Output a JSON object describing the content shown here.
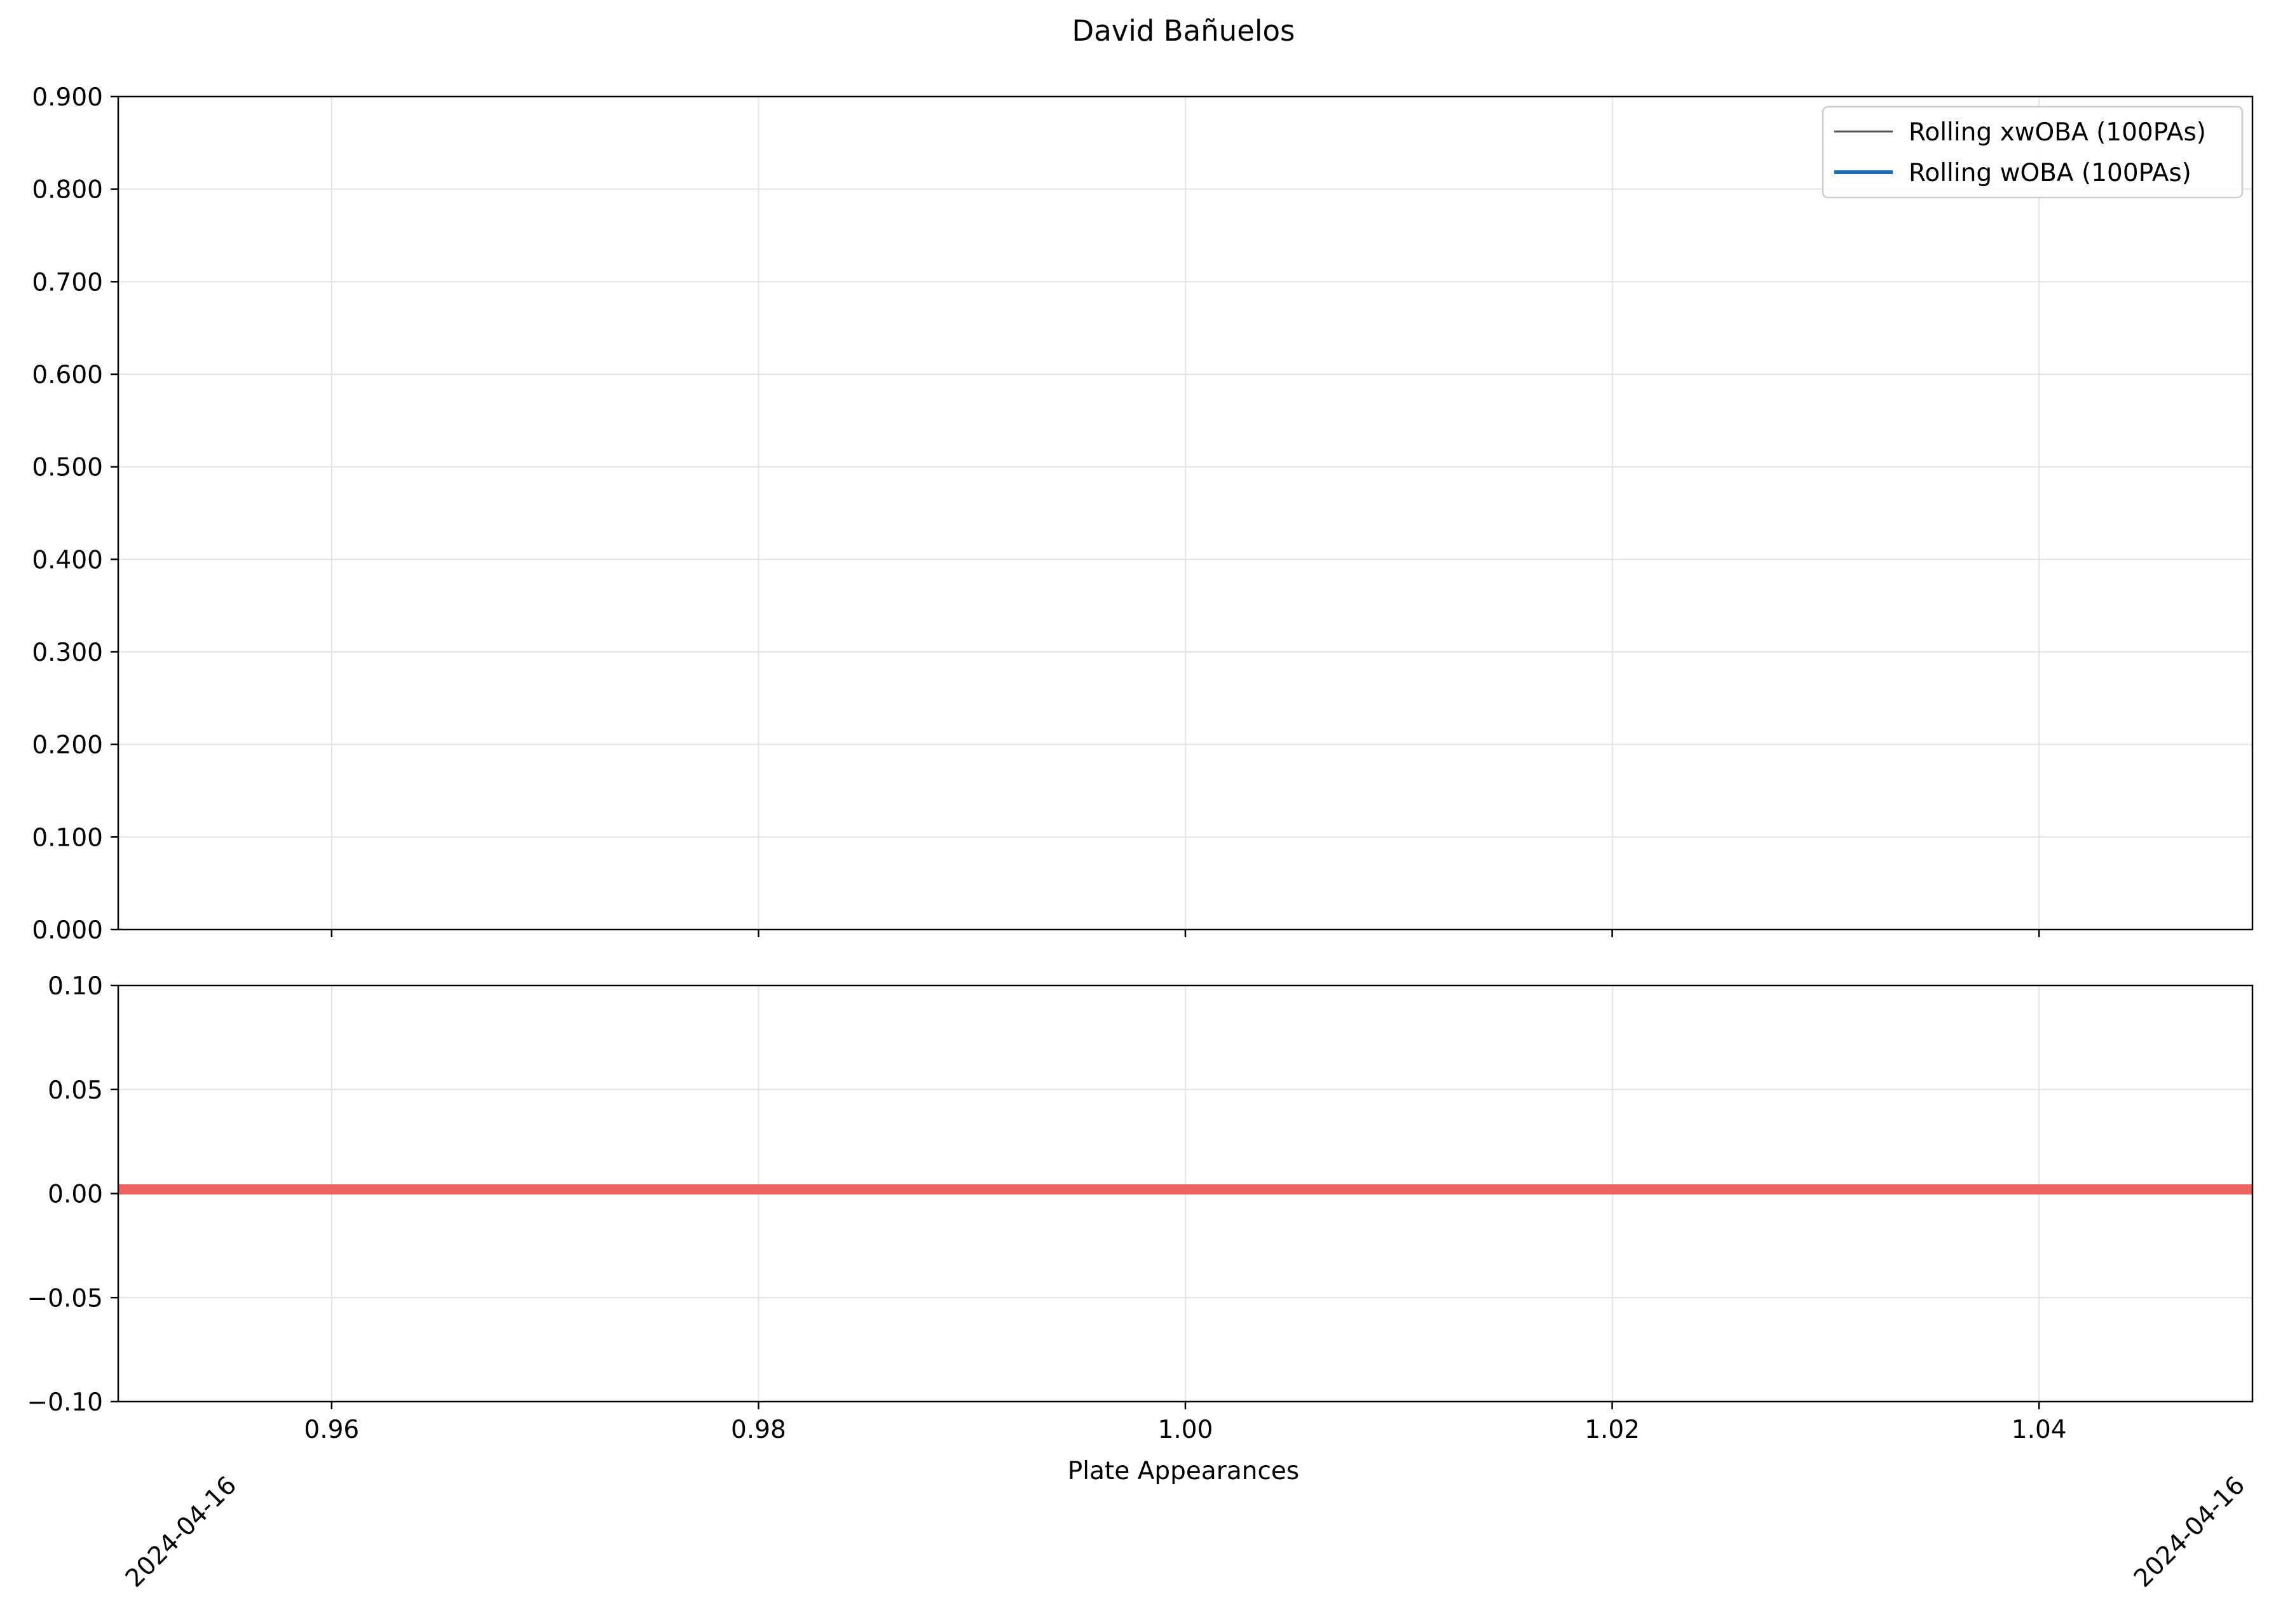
{
  "chart_data": [
    {
      "type": "line",
      "title": "David Bañuelos",
      "xlabel": "",
      "ylabel": "",
      "xlim": [
        0.95,
        1.05
      ],
      "ylim": [
        0.0,
        0.9
      ],
      "yticks": [
        0.0,
        0.1,
        0.2,
        0.3,
        0.4,
        0.5,
        0.6,
        0.7,
        0.8,
        0.9
      ],
      "ytick_labels": [
        "0.000",
        "0.100",
        "0.200",
        "0.300",
        "0.400",
        "0.500",
        "0.600",
        "0.700",
        "0.800",
        "0.900"
      ],
      "grid": true,
      "legend_position": "top-right",
      "series": [
        {
          "name": "Rolling xwOBA (100PAs)",
          "color": "#555555",
          "values": []
        },
        {
          "name": "Rolling wOBA (100PAs)",
          "color": "#1f6eb4",
          "values": []
        }
      ]
    },
    {
      "type": "line",
      "title": "",
      "xlabel": "Plate Appearances",
      "ylabel": "",
      "xlim": [
        0.95,
        1.05
      ],
      "ylim": [
        -0.1,
        0.1
      ],
      "xticks": [
        0.96,
        0.98,
        1.0,
        1.02,
        1.04
      ],
      "xtick_labels": [
        "0.96",
        "0.98",
        "1.00",
        "1.02",
        "1.04"
      ],
      "yticks": [
        -0.1,
        -0.05,
        0.0,
        0.05,
        0.1
      ],
      "ytick_labels": [
        "−0.10",
        "−0.05",
        "0.00",
        "0.05",
        "0.10"
      ],
      "date_labels": [
        "2024-04-16",
        "2024-04-16"
      ],
      "grid": true,
      "series": [
        {
          "name": "",
          "color": "#ef6262",
          "x": [
            0.95,
            1.05
          ],
          "values": [
            0.002,
            0.002
          ]
        }
      ]
    }
  ]
}
